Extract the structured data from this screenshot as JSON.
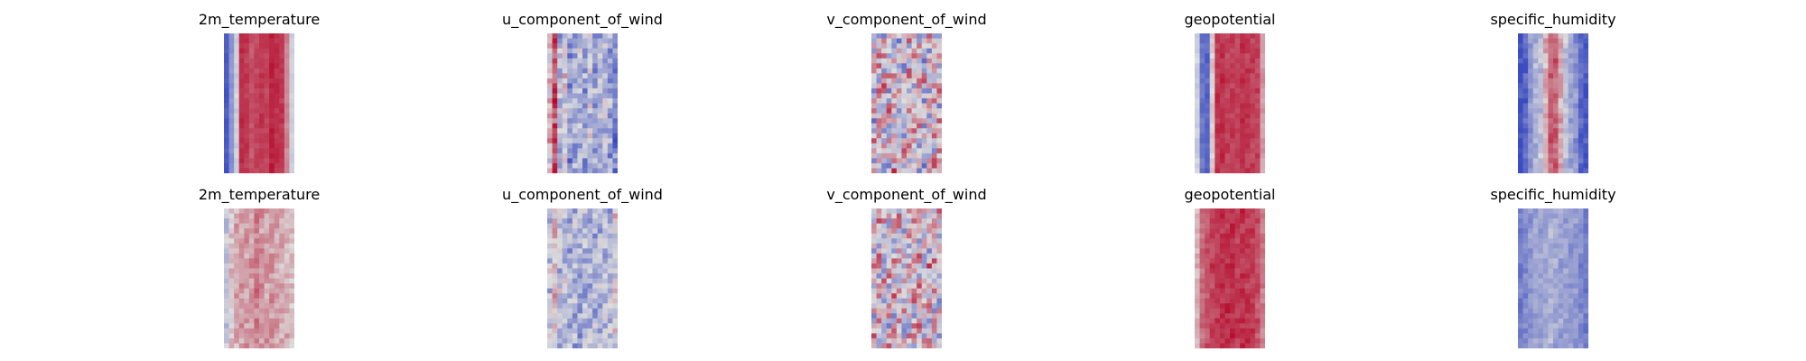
{
  "chart_data": {
    "type": "heatmap",
    "colormap": "coolwarm",
    "colors": {
      "low": "#3b4cc0",
      "mid": "#dddddd",
      "high": "#b40426"
    },
    "grid": false,
    "axes_visible": false,
    "rows": [
      {
        "panels": [
          {
            "title": "2m_temperature",
            "profile": [
              0.05,
              0.25,
              0.45,
              0.9,
              0.88,
              0.82,
              0.85,
              0.88,
              0.86,
              0.93,
              0.9,
              0.88,
              0.7,
              0.45
            ],
            "noise": 0.06
          },
          {
            "title": "u_component_of_wind",
            "profile": [
              0.55,
              0.85,
              0.35,
              0.5,
              0.25,
              0.3,
              0.35,
              0.3,
              0.4,
              0.3,
              0.35,
              0.4,
              0.3,
              0.2
            ],
            "noise": 0.3
          },
          {
            "title": "v_component_of_wind",
            "profile": [
              0.5,
              0.55,
              0.5,
              0.5,
              0.55,
              0.5,
              0.45,
              0.5,
              0.55,
              0.5,
              0.5,
              0.55,
              0.5,
              0.5
            ],
            "noise": 0.55
          },
          {
            "title": "geopotential",
            "profile": [
              0.45,
              0.15,
              0.1,
              0.55,
              0.88,
              0.9,
              0.85,
              0.87,
              0.85,
              0.9,
              0.88,
              0.86,
              0.85,
              0.65
            ],
            "noise": 0.08
          },
          {
            "title": "specific_humidity",
            "profile": [
              0.02,
              0.1,
              0.25,
              0.35,
              0.4,
              0.6,
              0.78,
              0.78,
              0.62,
              0.4,
              0.3,
              0.25,
              0.12,
              0.05
            ],
            "noise": 0.14
          }
        ]
      },
      {
        "panels": [
          {
            "title": "2m_temperature",
            "profile": [
              0.4,
              0.55,
              0.62,
              0.65,
              0.66,
              0.65,
              0.72,
              0.66,
              0.64,
              0.66,
              0.65,
              0.62,
              0.6,
              0.58
            ],
            "noise": 0.14
          },
          {
            "title": "u_component_of_wind",
            "profile": [
              0.4,
              0.55,
              0.4,
              0.38,
              0.33,
              0.35,
              0.33,
              0.35,
              0.33,
              0.35,
              0.37,
              0.4,
              0.35,
              0.5
            ],
            "noise": 0.28
          },
          {
            "title": "v_component_of_wind",
            "profile": [
              0.5,
              0.55,
              0.5,
              0.52,
              0.55,
              0.5,
              0.48,
              0.5,
              0.55,
              0.52,
              0.5,
              0.55,
              0.52,
              0.5
            ],
            "noise": 0.5
          },
          {
            "title": "geopotential",
            "profile": [
              0.6,
              0.75,
              0.82,
              0.86,
              0.88,
              0.9,
              0.9,
              0.9,
              0.88,
              0.9,
              0.88,
              0.86,
              0.82,
              0.72
            ],
            "noise": 0.1
          },
          {
            "title": "specific_humidity",
            "profile": [
              0.18,
              0.22,
              0.26,
              0.3,
              0.3,
              0.32,
              0.35,
              0.32,
              0.3,
              0.3,
              0.28,
              0.26,
              0.22,
              0.18
            ],
            "noise": 0.12
          }
        ]
      }
    ]
  }
}
